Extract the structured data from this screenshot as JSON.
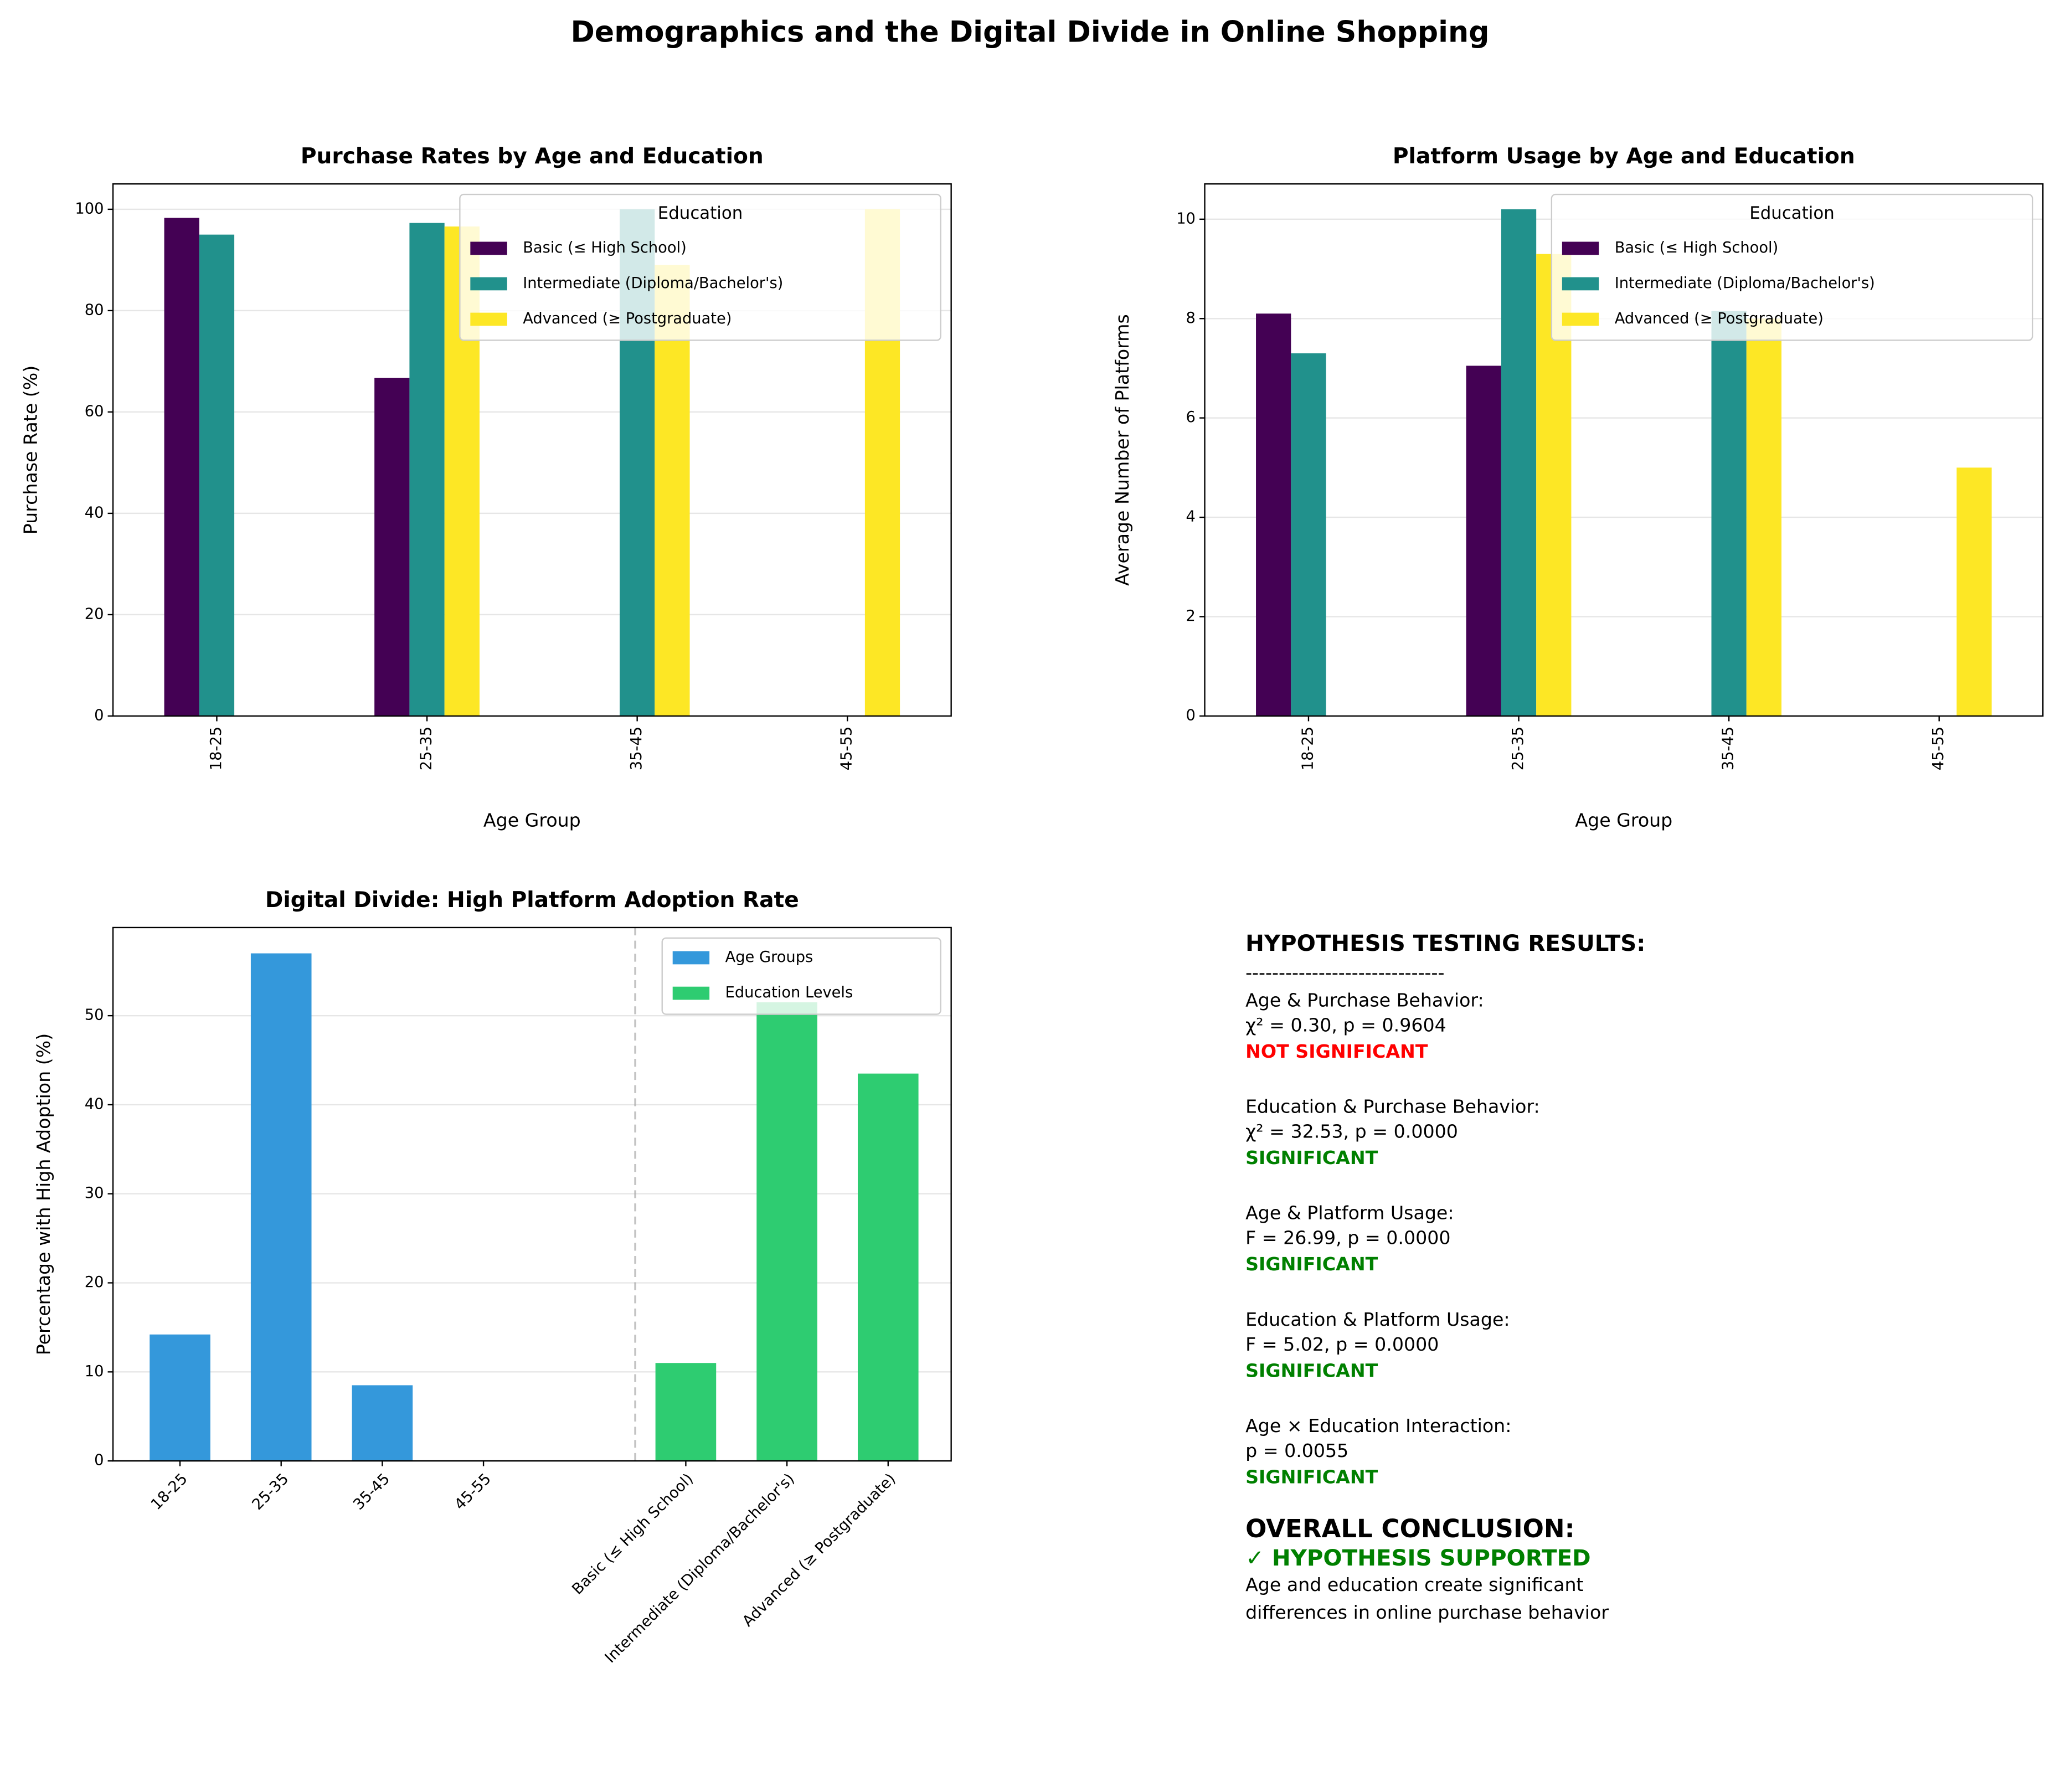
{
  "title": "Demographics and the Digital Divide in Online Shopping",
  "chart_data": [
    {
      "type": "bar",
      "title": "Purchase Rates by Age and Education",
      "xlabel": "Age Group",
      "ylabel": "Purchase Rate (%)",
      "categories": [
        "18-25",
        "25-35",
        "35-45",
        "45-55"
      ],
      "legend_title": "Education",
      "legend": "upper right",
      "grid": true,
      "series": [
        {
          "name": "Basic (≤ High School)",
          "color": "#440154",
          "values": [
            98.3,
            66.7,
            null,
            null
          ]
        },
        {
          "name": "Intermediate (Diploma/Bachelor's)",
          "color": "#21918c",
          "values": [
            95.0,
            97.3,
            100.0,
            null
          ]
        },
        {
          "name": "Advanced (≥ Postgraduate)",
          "color": "#fde725",
          "values": [
            null,
            96.6,
            89.0,
            100.0
          ]
        }
      ],
      "ylim": [
        0,
        105
      ],
      "yticks": [
        0,
        20,
        40,
        60,
        80,
        100
      ]
    },
    {
      "type": "bar",
      "title": "Platform Usage by Age and Education",
      "xlabel": "Age Group",
      "ylabel": "Average Number of Platforms",
      "categories": [
        "18-25",
        "25-35",
        "35-45",
        "45-55"
      ],
      "legend_title": "Education",
      "legend": "upper right",
      "grid": true,
      "series": [
        {
          "name": "Basic (≤ High School)",
          "color": "#440154",
          "values": [
            8.1,
            7.05,
            null,
            null
          ]
        },
        {
          "name": "Intermediate (Diploma/Bachelor's)",
          "color": "#21918c",
          "values": [
            7.3,
            10.2,
            8.15,
            null
          ]
        },
        {
          "name": "Advanced (≥ Postgraduate)",
          "color": "#fde725",
          "values": [
            null,
            9.3,
            8.0,
            5.0
          ]
        }
      ],
      "ylim": [
        0,
        10.71
      ],
      "yticks": [
        0,
        2,
        4,
        6,
        8,
        10
      ]
    },
    {
      "type": "bar_single",
      "title": "Digital Divide: High Platform Adoption Rate",
      "ylabel": "Percentage with High Adoption (%)",
      "categories": [
        "18-25",
        "25-35",
        "35-45",
        "45-55",
        null,
        "Basic (≤ High School)",
        "Intermediate (Diploma/Bachelor's)",
        "Advanced (≥ Postgraduate)"
      ],
      "legend": "upper right",
      "grid": true,
      "series": [
        {
          "name": "Age Groups",
          "color": "#3498db",
          "values": [
            14.2,
            57.0,
            8.5,
            0,
            null,
            null,
            null,
            null
          ]
        },
        {
          "name": "Education Levels",
          "color": "#2ecc71",
          "values": [
            null,
            null,
            null,
            null,
            null,
            11.0,
            51.5,
            43.5
          ]
        }
      ],
      "ylim": [
        0,
        59.9
      ],
      "yticks": [
        0,
        10,
        20,
        30,
        40,
        50
      ]
    }
  ],
  "hypothesis_panel": {
    "heading": "HYPOTHESIS TESTING RESULTS:",
    "separator": "------------------------------",
    "tests": [
      {
        "label": "Age & Purchase Behavior:",
        "stat": "χ² = 0.30, p = 0.9604",
        "result": "NOT SIGNIFICANT",
        "color": "#ff0000"
      },
      {
        "label": "Education & Purchase Behavior:",
        "stat": "χ² = 32.53, p = 0.0000",
        "result": "SIGNIFICANT",
        "color": "#008000"
      },
      {
        "label": "Age & Platform Usage:",
        "stat": "F = 26.99, p = 0.0000",
        "result": "SIGNIFICANT",
        "color": "#008000"
      },
      {
        "label": "Education & Platform Usage:",
        "stat": "F = 5.02, p = 0.0000",
        "result": "SIGNIFICANT",
        "color": "#008000"
      },
      {
        "label": "Age × Education Interaction:",
        "stat": "p = 0.0055",
        "result": "SIGNIFICANT",
        "color": "#008000"
      }
    ],
    "conclusion_heading": "OVERALL CONCLUSION:",
    "conclusion_result": "✓ HYPOTHESIS SUPPORTED",
    "conclusion_color": "#008000",
    "conclusion_text": [
      "Age and education create significant",
      "differences in online purchase behavior"
    ]
  }
}
